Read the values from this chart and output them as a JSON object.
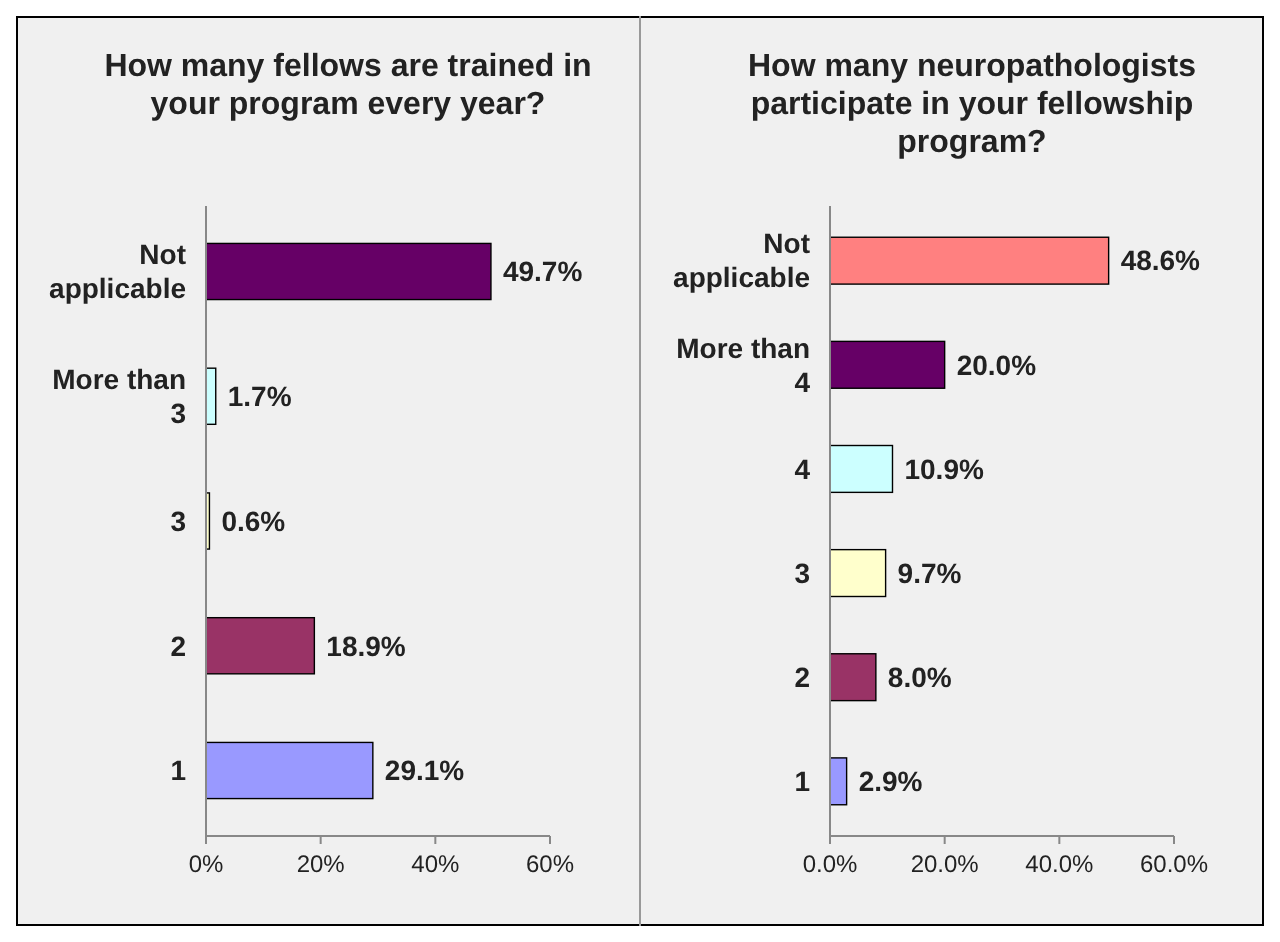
{
  "chart_data": [
    {
      "type": "bar",
      "orientation": "horizontal",
      "title": "How many fellows are trained in your program every year?",
      "categories": [
        "Not applicable",
        "More than 3",
        "3",
        "2",
        "1"
      ],
      "values": [
        49.7,
        1.7,
        0.6,
        18.9,
        29.1
      ],
      "colors": [
        "#660066",
        "#ccffff",
        "#ffffcc",
        "#993366",
        "#9999ff"
      ],
      "value_labels": [
        "49.7%",
        "1.7%",
        "0.6%",
        "18.9%",
        "29.1%"
      ],
      "xlim": [
        0,
        60
      ],
      "xticks": [
        {
          "value": 0,
          "label": "0%"
        },
        {
          "value": 20,
          "label": "20%"
        },
        {
          "value": 40,
          "label": "40%"
        },
        {
          "value": 60,
          "label": "60%"
        }
      ]
    },
    {
      "type": "bar",
      "orientation": "horizontal",
      "title": "How many neuropathologists participate in your fellowship program?",
      "categories": [
        "Not applicable",
        "More than 4",
        "4",
        "3",
        "2",
        "1"
      ],
      "values": [
        48.6,
        20.0,
        10.9,
        9.7,
        8.0,
        2.9
      ],
      "colors": [
        "#ff8080",
        "#660066",
        "#ccffff",
        "#ffffcc",
        "#993366",
        "#9999ff"
      ],
      "value_labels": [
        "48.6%",
        "20.0%",
        "10.9%",
        "9.7%",
        "8.0%",
        "2.9%"
      ],
      "xlim": [
        0,
        60
      ],
      "xticks": [
        {
          "value": 0,
          "label": "0.0%"
        },
        {
          "value": 20,
          "label": "20.0%"
        },
        {
          "value": 40,
          "label": "40.0%"
        },
        {
          "value": 60,
          "label": "60.0%"
        }
      ]
    }
  ]
}
